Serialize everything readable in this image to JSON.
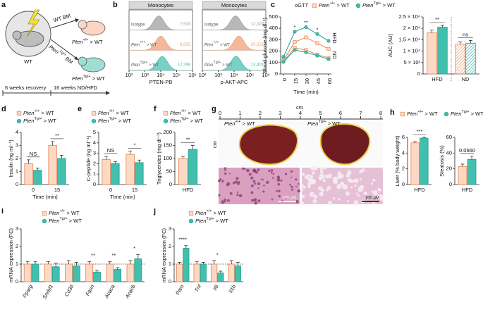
{
  "panels": [
    "a",
    "b",
    "c",
    "d",
    "e",
    "f",
    "g",
    "h",
    "i",
    "j"
  ],
  "schematic": {
    "donor": "WT",
    "wt_bm": "WT BM",
    "tg_bm": [
      "Pten",
      "Tg/+",
      " BM"
    ],
    "recipient1": [
      "Pten",
      "+/+",
      " > WT"
    ],
    "recipient2": [
      "Pten",
      "Tg/+",
      " > WT"
    ],
    "step1": "6 weeks recovery",
    "step2": "16 weeks ND/HFD"
  },
  "flow": [
    {
      "title": "Monocytes",
      "xlabel": "PTEN-PB",
      "xlim": [
        100,
        1000000
      ],
      "xticks": [
        {
          "value": 100,
          "label": "10²"
        },
        {
          "value": 1000,
          "label": "10³"
        },
        {
          "value": 10000,
          "label": "10⁴"
        },
        {
          "value": 100000,
          "label": "10⁵"
        },
        {
          "value": 1000000,
          "label": "10⁶"
        }
      ],
      "rows": [
        {
          "name": [
            "Isotype"
          ],
          "value": 7533,
          "label": "7,533",
          "color": "#a0a0a0"
        },
        {
          "name": [
            "Pten",
            "+/+",
            " > WT"
          ],
          "value": 9955,
          "label": "9,955",
          "color": "#f0a27a"
        },
        {
          "name": [
            "Pten",
            "Tg/+",
            " > WT"
          ],
          "value": 12298,
          "label": "12,298",
          "color": "#4fc0b0"
        }
      ]
    },
    {
      "title": "Monocytes",
      "xlabel": "p-AKT-APC",
      "xlim": [
        100,
        1000000
      ],
      "xticks": [
        {
          "value": 100,
          "label": "10²"
        },
        {
          "value": 1000,
          "label": "10³"
        },
        {
          "value": 10000,
          "label": "10⁴"
        },
        {
          "value": 100000,
          "label": "10⁵"
        },
        {
          "value": 1000000,
          "label": "10⁶"
        }
      ],
      "rows": [
        {
          "name": [
            "Isotype"
          ],
          "value": 12320,
          "label": "12,320",
          "color": "#a0a0a0"
        },
        {
          "name": [
            "Pten",
            "+/+",
            " > WT"
          ],
          "value": 20051,
          "label": "20,051",
          "color": "#f0a27a"
        },
        {
          "name": [
            "Pten",
            "Tg/+",
            " > WT"
          ],
          "value": 13301,
          "label": "13,301",
          "color": "#4fc0b0"
        }
      ]
    }
  ],
  "photo": {
    "ruler_label": "cm",
    "ruler_ticks": [
      0,
      1,
      2,
      3,
      4,
      5,
      6,
      7,
      8
    ],
    "side_label": "cm",
    "left": [
      "Pten",
      "+/+",
      " > WT"
    ],
    "right": [
      "Pten",
      "Tg/+",
      " > WT"
    ],
    "scale_left": "100 µM",
    "scale_right": "100 µM"
  },
  "chart_data": [
    {
      "type": "line",
      "legend_title": "oGTT",
      "xlabel": "Time (min)",
      "ylabel": "Blood glucose (mg dl⁻¹)",
      "x": [
        0,
        15,
        30,
        45,
        60
      ],
      "xlim": [
        0,
        60
      ],
      "xticks": [
        0,
        15,
        30,
        45,
        60
      ],
      "ylim": [
        0,
        500
      ],
      "yticks": [
        0,
        100,
        200,
        300,
        400,
        500
      ],
      "series": [
        {
          "name": [
            "Pten",
            "+/+",
            " > WT"
          ],
          "color": "#e8834e",
          "fill": "#fcd9c5",
          "marker": "square",
          "values": [
            120,
            280,
            320,
            270,
            220
          ]
        },
        {
          "name": [
            "Pten",
            "Tg/+",
            " > WT"
          ],
          "color": "#1e9e8e",
          "fill": "#43bfae",
          "marker": "circle",
          "label": "HFD",
          "values": [
            150,
            370,
            410,
            350,
            290
          ]
        },
        {
          "color": "#e8834e",
          "fill": "#fcd9c5",
          "marker": "square",
          "label": "ND",
          "values": [
            110,
            230,
            210,
            170,
            140
          ]
        },
        {
          "color": "#1e9e8e",
          "fill": "#43bfae",
          "marker": "circle",
          "values": [
            105,
            210,
            190,
            160,
            130
          ]
        }
      ],
      "annotations": [
        {
          "text": "*",
          "x": 15
        },
        {
          "text": "**",
          "x": 30
        },
        {
          "text": "*",
          "x": 45
        }
      ]
    },
    {
      "type": "bar",
      "ylabel": "AUC (AU)",
      "categories": [
        "HFD",
        "ND"
      ],
      "ylim": [
        0,
        25000
      ],
      "yticks": [
        0,
        {
          "value": 5000,
          "label": "5 × 10³"
        },
        {
          "value": 10000,
          "label": "1 × 10⁴"
        },
        {
          "value": 15000,
          "label": "1.5 × 10⁴"
        },
        {
          "value": 20000,
          "label": "2 × 10⁴"
        },
        {
          "value": 25000,
          "label": "2.5 × 10⁴"
        }
      ],
      "divider": true,
      "hatch": [
        false,
        true
      ],
      "series": [
        {
          "color": "#e8834e",
          "fill": "#fcd9c5",
          "marker": "square",
          "values": [
            18000,
            13000
          ],
          "errors": [
            1200,
            1000
          ]
        },
        {
          "color": "#1e9e8e",
          "fill": "#43bfae",
          "marker": "circle",
          "values": [
            20500,
            13500
          ],
          "errors": [
            800,
            1200
          ]
        }
      ],
      "annotations": [
        {
          "text": "**",
          "category": 0
        },
        {
          "text": "ns",
          "category": 1
        }
      ]
    },
    {
      "type": "bar",
      "ylabel": "Insulin (ng ml⁻¹)",
      "xlabel": "Time (min)",
      "categories": [
        "0",
        "15"
      ],
      "ylim": [
        0,
        4
      ],
      "yticks": [
        0,
        1,
        2,
        3,
        4
      ],
      "series": [
        {
          "name": [
            "Pten",
            "+/+",
            " > WT"
          ],
          "color": "#e8834e",
          "fill": "#fcd9c5",
          "marker": "square",
          "values": [
            1.6,
            3.0
          ],
          "errors": [
            0.3,
            0.3
          ]
        },
        {
          "name": [
            "Pten",
            "Tg/+",
            " > WT"
          ],
          "color": "#1e9e8e",
          "fill": "#43bfae",
          "marker": "circle",
          "values": [
            1.1,
            2.0
          ],
          "errors": [
            0.15,
            0.25
          ]
        }
      ],
      "annotations": [
        {
          "text": "NS",
          "category": 0
        },
        {
          "text": "**",
          "category": 1
        }
      ]
    },
    {
      "type": "bar",
      "ylabel": "C-peptide (ng ml⁻¹)",
      "xlabel": "Time (min)",
      "categories": [
        "0",
        "15"
      ],
      "ylim": [
        0,
        5
      ],
      "yticks": [
        0,
        1,
        2,
        3,
        4,
        5
      ],
      "series": [
        {
          "name": [
            "Pten",
            "+/+",
            " > WT"
          ],
          "color": "#e8834e",
          "fill": "#fcd9c5",
          "marker": "square",
          "values": [
            2.4,
            2.9
          ],
          "errors": [
            0.3,
            0.3
          ]
        },
        {
          "name": [
            "Pten",
            "Tg/+",
            " > WT"
          ],
          "color": "#1e9e8e",
          "fill": "#43bfae",
          "marker": "circle",
          "values": [
            2.0,
            2.1
          ],
          "errors": [
            0.2,
            0.25
          ]
        }
      ],
      "annotations": [
        {
          "text": "NS",
          "category": 0
        },
        {
          "text": "*",
          "category": 1
        }
      ]
    },
    {
      "type": "bar",
      "ylabel": "Triglycerides (mg dl⁻¹)",
      "categories": [
        "HFD"
      ],
      "ylim": [
        0,
        200
      ],
      "yticks": [
        0,
        50,
        100,
        150,
        200
      ],
      "series": [
        {
          "name": [
            "Pten",
            "+/+",
            " > WT"
          ],
          "color": "#e8834e",
          "fill": "#fcd9c5",
          "marker": "square",
          "values": [
            100
          ],
          "errors": [
            8
          ]
        },
        {
          "name": [
            "Pten",
            "Tg/+",
            " > WT"
          ],
          "color": "#1e9e8e",
          "fill": "#43bfae",
          "marker": "circle",
          "values": [
            135
          ],
          "errors": [
            15
          ]
        }
      ],
      "annotations": [
        {
          "text": "**",
          "category": 0
        }
      ]
    },
    {
      "type": "bar",
      "ylabel": "Liver (% body weight)",
      "categories": [
        "HFD"
      ],
      "ylim": [
        0,
        6
      ],
      "yticks": [
        0,
        2,
        4,
        6
      ],
      "series": [
        {
          "name": [
            "Pten",
            "+/+",
            " > WT"
          ],
          "color": "#e8834e",
          "fill": "#fcd9c5",
          "marker": "square",
          "values": [
            5.3
          ],
          "errors": [
            0.15
          ]
        },
        {
          "name": [
            "Pten",
            "Tg/+",
            " > WT"
          ],
          "color": "#1e9e8e",
          "fill": "#43bfae",
          "marker": "circle",
          "values": [
            5.9
          ],
          "errors": [
            0.1
          ]
        }
      ],
      "annotations": [
        {
          "text": "***",
          "category": 0
        }
      ]
    },
    {
      "type": "bar",
      "ylabel": "Steatosis (%)",
      "categories": [
        "HFD"
      ],
      "ylim": [
        0,
        60
      ],
      "yticks": [
        0,
        20,
        40,
        60
      ],
      "series": [
        {
          "color": "#e8834e",
          "fill": "#fcd9c5",
          "marker": "square",
          "values": [
            23
          ],
          "errors": [
            3
          ]
        },
        {
          "color": "#1e9e8e",
          "fill": "#43bfae",
          "marker": "circle",
          "values": [
            32
          ],
          "errors": [
            4
          ]
        }
      ],
      "annotations": [
        {
          "text": "0.0660",
          "category": 0
        }
      ]
    },
    {
      "type": "bar",
      "ylabel": "mRNA expression (FC)",
      "categories": [
        "Pparg",
        "Srebf1",
        "Cd36",
        "Fasn",
        "Acaca",
        "Acacb"
      ],
      "xtick_rotation": -60,
      "reference_line": 1,
      "ylim": [
        0,
        3
      ],
      "yticks": [
        0,
        1,
        2,
        3
      ],
      "series": [
        {
          "name": [
            "Pten",
            "+/+",
            " > WT"
          ],
          "color": "#e8834e",
          "fill": "#fcd9c5",
          "marker": "square",
          "values": [
            1,
            1,
            1,
            1,
            1,
            1
          ],
          "errors": [
            0.15,
            0.15,
            0.2,
            0.15,
            0.15,
            0.2
          ]
        },
        {
          "name": [
            "Pten",
            "Tg/+",
            " > WT"
          ],
          "color": "#1e9e8e",
          "fill": "#43bfae",
          "marker": "circle",
          "values": [
            1.0,
            0.85,
            0.9,
            0.55,
            0.7,
            1.3
          ],
          "errors": [
            0.15,
            0.2,
            0.2,
            0.1,
            0.1,
            0.25
          ]
        }
      ],
      "annotations": [
        {
          "text": "**",
          "category": 3
        },
        {
          "text": "**",
          "category": 4
        },
        {
          "text": "*",
          "category": 5
        }
      ]
    },
    {
      "type": "bar",
      "ylabel": "mRNA expression (FC)",
      "categories": [
        "Pten",
        "Tnf",
        "Il6",
        "Il1b"
      ],
      "xtick_rotation": -60,
      "reference_line": 1,
      "ylim": [
        0,
        3
      ],
      "yticks": [
        0,
        1,
        2,
        3
      ],
      "series": [
        {
          "name": [
            "Pten",
            "+/+",
            " > WT"
          ],
          "color": "#e8834e",
          "fill": "#fcd9c5",
          "marker": "square",
          "values": [
            1,
            1,
            1,
            1
          ],
          "errors": [
            0.1,
            0.15,
            0.2,
            0.2
          ]
        },
        {
          "name": [
            "Pten",
            "Tg/+",
            " > WT"
          ],
          "color": "#1e9e8e",
          "fill": "#43bfae",
          "marker": "circle",
          "values": [
            1.9,
            1.0,
            0.5,
            0.9
          ],
          "errors": [
            0.15,
            0.1,
            0.1,
            0.2
          ]
        }
      ],
      "annotations": [
        {
          "text": "****",
          "category": 0
        },
        {
          "text": "*",
          "category": 2
        }
      ]
    }
  ]
}
